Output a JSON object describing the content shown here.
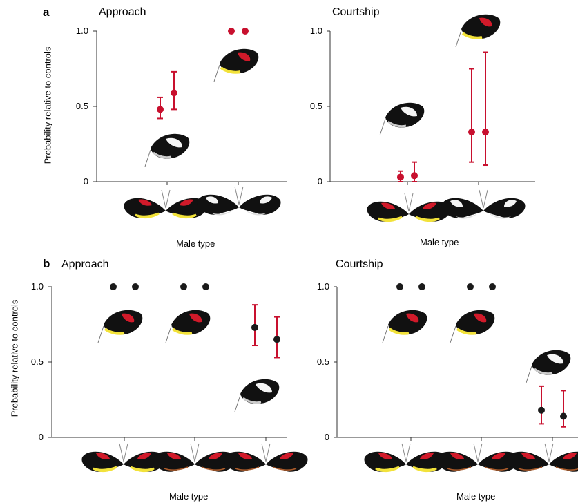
{
  "figure": {
    "panel_a_letter": "a",
    "panel_b_letter": "b"
  },
  "colors": {
    "red_series": "#c8102e",
    "black_series": "#1a1a1a",
    "axis": "#333333"
  },
  "chart_data": [
    {
      "id": "a-approach",
      "type": "scatter",
      "title": "Approach",
      "ylabel": "Probability relative to controls",
      "xlabel": "",
      "ylim": [
        0,
        1.0
      ],
      "yticks": [
        "0",
        "0.5",
        "1.0"
      ],
      "categories": [
        "yellow-banded red male",
        "white-banded male"
      ],
      "points": [
        {
          "category": 0,
          "offset": -1,
          "value": 0.48,
          "low": 0.42,
          "high": 0.56,
          "color": "red"
        },
        {
          "category": 0,
          "offset": 1,
          "value": 0.59,
          "low": 0.48,
          "high": 0.73,
          "color": "red"
        },
        {
          "category": 1,
          "offset": -1,
          "value": 1.0,
          "low": null,
          "high": null,
          "color": "red"
        },
        {
          "category": 1,
          "offset": 1,
          "value": 1.0,
          "low": null,
          "high": null,
          "color": "red"
        }
      ]
    },
    {
      "id": "a-courtship",
      "type": "scatter",
      "title": "Courtship",
      "ylabel": "",
      "xlabel": "Male type",
      "ylim": [
        0,
        1.0
      ],
      "yticks": [
        "0",
        "0.5",
        "1.0"
      ],
      "categories": [
        "yellow-banded red male",
        "white-banded male"
      ],
      "points": [
        {
          "category": 0,
          "offset": -1,
          "value": 0.03,
          "low": 0.0,
          "high": 0.07,
          "color": "red"
        },
        {
          "category": 0,
          "offset": 1,
          "value": 0.04,
          "low": 0.0,
          "high": 0.13,
          "color": "red"
        },
        {
          "category": 1,
          "offset": -1,
          "value": 0.33,
          "low": 0.13,
          "high": 0.75,
          "color": "red"
        },
        {
          "category": 1,
          "offset": 1,
          "value": 0.33,
          "low": 0.11,
          "high": 0.86,
          "color": "red"
        }
      ]
    },
    {
      "id": "b-approach",
      "type": "scatter",
      "title": "Approach",
      "ylabel": "Probability relative to controls",
      "xlabel": "Male type",
      "ylim": [
        0,
        1.0
      ],
      "yticks": [
        "0",
        "0.5",
        "1.0"
      ],
      "categories": [
        "yellow-banded male",
        "red-banded male",
        "red-banded male 2"
      ],
      "points": [
        {
          "category": 0,
          "offset": -1,
          "value": 1.0,
          "low": null,
          "high": null,
          "color": "black"
        },
        {
          "category": 0,
          "offset": 1,
          "value": 1.0,
          "low": null,
          "high": null,
          "color": "black"
        },
        {
          "category": 1,
          "offset": -1,
          "value": 1.0,
          "low": null,
          "high": null,
          "color": "black"
        },
        {
          "category": 1,
          "offset": 1,
          "value": 1.0,
          "low": null,
          "high": null,
          "color": "black"
        },
        {
          "category": 2,
          "offset": -1,
          "value": 0.73,
          "low": 0.61,
          "high": 0.88,
          "color": "black"
        },
        {
          "category": 2,
          "offset": 1,
          "value": 0.65,
          "low": 0.53,
          "high": 0.8,
          "color": "black"
        }
      ]
    },
    {
      "id": "b-courtship",
      "type": "scatter",
      "title": "Courtship",
      "ylabel": "",
      "xlabel": "Male type",
      "ylim": [
        0,
        1.0
      ],
      "yticks": [
        "0",
        "0.5",
        "1.0"
      ],
      "categories": [
        "yellow-banded male",
        "red-banded male",
        "red-banded male 2"
      ],
      "points": [
        {
          "category": 0,
          "offset": -1,
          "value": 1.0,
          "low": null,
          "high": null,
          "color": "black"
        },
        {
          "category": 0,
          "offset": 1,
          "value": 1.0,
          "low": null,
          "high": null,
          "color": "black"
        },
        {
          "category": 1,
          "offset": -1,
          "value": 1.0,
          "low": null,
          "high": null,
          "color": "black"
        },
        {
          "category": 1,
          "offset": 1,
          "value": 1.0,
          "low": null,
          "high": null,
          "color": "black"
        },
        {
          "category": 2,
          "offset": -1,
          "value": 0.18,
          "low": 0.09,
          "high": 0.34,
          "color": "black"
        },
        {
          "category": 2,
          "offset": 1,
          "value": 0.14,
          "low": 0.07,
          "high": 0.31,
          "color": "black"
        }
      ]
    }
  ]
}
